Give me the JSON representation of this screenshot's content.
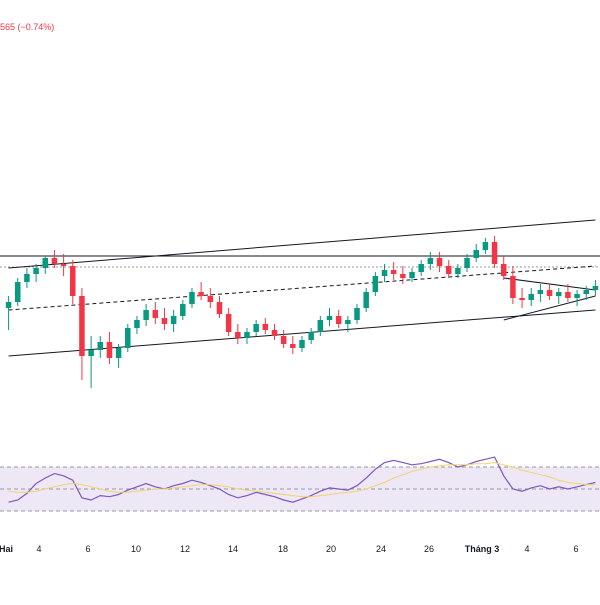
{
  "header": {
    "price_change": "565 (−0.74%)"
  },
  "colors": {
    "up": "#089981",
    "down": "#f23645",
    "rsi_line": "#7e57c2",
    "rsi_ma": "#f3d36b",
    "rsi_band": "#ede7f6",
    "trendline": "#131722",
    "horizontal_line": "#131722",
    "dotted_line": "#9598a1",
    "change_text": "#f23645"
  },
  "chart_data": [
    {
      "type": "candlestick",
      "title": "",
      "x_labels": [
        {
          "label": "Hai",
          "bold": true
        },
        {
          "label": "4",
          "bold": false
        },
        {
          "label": "6",
          "bold": false
        },
        {
          "label": "10",
          "bold": false
        },
        {
          "label": "12",
          "bold": false
        },
        {
          "label": "14",
          "bold": false
        },
        {
          "label": "18",
          "bold": false
        },
        {
          "label": "20",
          "bold": false
        },
        {
          "label": "24",
          "bold": false
        },
        {
          "label": "26",
          "bold": false
        },
        {
          "label": "Tháng 3",
          "bold": true
        },
        {
          "label": "4",
          "bold": false
        },
        {
          "label": "6",
          "bold": false
        }
      ],
      "candles": [
        [
          276,
          282,
          265,
          279
        ],
        [
          279,
          291,
          277,
          289
        ],
        [
          289,
          296,
          286,
          293
        ],
        [
          293,
          298,
          289,
          296
        ],
        [
          296,
          302,
          293,
          301
        ],
        [
          301,
          305,
          296,
          298
        ],
        [
          298,
          303,
          292,
          297
        ],
        [
          297,
          300,
          278,
          282
        ],
        [
          282,
          286,
          240,
          252
        ],
        [
          252,
          262,
          236,
          255
        ],
        [
          255,
          262,
          251,
          259
        ],
        [
          259,
          264,
          248,
          251
        ],
        [
          251,
          258,
          246,
          256
        ],
        [
          256,
          268,
          254,
          266
        ],
        [
          266,
          272,
          263,
          270
        ],
        [
          270,
          278,
          267,
          275
        ],
        [
          275,
          279,
          268,
          271
        ],
        [
          271,
          276,
          265,
          268
        ],
        [
          268,
          275,
          264,
          272
        ],
        [
          272,
          280,
          270,
          278
        ],
        [
          278,
          286,
          276,
          284
        ],
        [
          284,
          289,
          280,
          282
        ],
        [
          282,
          286,
          276,
          279
        ],
        [
          279,
          282,
          271,
          273
        ],
        [
          273,
          276,
          262,
          264
        ],
        [
          264,
          268,
          258,
          261
        ],
        [
          261,
          266,
          258,
          264
        ],
        [
          264,
          270,
          262,
          268
        ],
        [
          268,
          271,
          263,
          265
        ],
        [
          265,
          268,
          260,
          262
        ],
        [
          262,
          265,
          256,
          258
        ],
        [
          258,
          262,
          253,
          256
        ],
        [
          256,
          262,
          254,
          260
        ],
        [
          260,
          266,
          258,
          264
        ],
        [
          264,
          272,
          262,
          270
        ],
        [
          270,
          276,
          267,
          272
        ],
        [
          272,
          275,
          266,
          268
        ],
        [
          268,
          272,
          264,
          270
        ],
        [
          270,
          278,
          268,
          276
        ],
        [
          276,
          286,
          274,
          284
        ],
        [
          284,
          294,
          282,
          292
        ],
        [
          292,
          298,
          289,
          295
        ],
        [
          295,
          299,
          290,
          293
        ],
        [
          293,
          297,
          288,
          291
        ],
        [
          291,
          296,
          289,
          294
        ],
        [
          294,
          300,
          292,
          298
        ],
        [
          298,
          304,
          295,
          301
        ],
        [
          301,
          304,
          294,
          297
        ],
        [
          297,
          300,
          291,
          293
        ],
        [
          293,
          298,
          291,
          296
        ],
        [
          296,
          303,
          294,
          301
        ],
        [
          301,
          308,
          299,
          305
        ],
        [
          305,
          311,
          303,
          309
        ],
        [
          309,
          312,
          296,
          298
        ],
        [
          298,
          302,
          290,
          292
        ],
        [
          292,
          297,
          278,
          281
        ],
        [
          281,
          286,
          276,
          280
        ],
        [
          280,
          286,
          277,
          283
        ],
        [
          283,
          288,
          279,
          285
        ],
        [
          285,
          288,
          280,
          282
        ],
        [
          282,
          286,
          278,
          284
        ],
        [
          284,
          288,
          279,
          281
        ],
        [
          281,
          285,
          277,
          283
        ],
        [
          283,
          287,
          280,
          285
        ],
        [
          285,
          290,
          282,
          287
        ]
      ],
      "ylim": [
        230,
        330
      ],
      "trendlines": [
        {
          "start": {
            "x": 0,
            "y": 252
          },
          "end": {
            "x": 64,
            "y": 275
          },
          "style": "solid"
        },
        {
          "start": {
            "x": 0,
            "y": 296
          },
          "end": {
            "x": 64,
            "y": 320
          },
          "style": "solid"
        },
        {
          "start": {
            "x": 0,
            "y": 275
          },
          "end": {
            "x": 64,
            "y": 297
          },
          "style": "dashed"
        },
        {
          "start": {
            "x": 54,
            "y": 291
          },
          "end": {
            "x": 64,
            "y": 285
          },
          "style": "solid"
        },
        {
          "start": {
            "x": 54,
            "y": 270
          },
          "end": {
            "x": 64,
            "y": 282
          },
          "style": "solid"
        }
      ],
      "horizontal_lines": [
        {
          "y": 302,
          "style": "solid"
        },
        {
          "y": 296.5,
          "style": "dotted"
        }
      ]
    },
    {
      "type": "line",
      "title": "",
      "ylim": [
        20,
        80
      ],
      "bands": [
        70,
        50,
        30
      ],
      "series": [
        {
          "values": [
            38,
            40,
            46,
            55,
            60,
            64,
            62,
            58,
            42,
            40,
            44,
            43,
            45,
            49,
            52,
            55,
            52,
            50,
            53,
            55,
            58,
            56,
            53,
            50,
            45,
            42,
            44,
            47,
            45,
            43,
            40,
            38,
            41,
            44,
            48,
            51,
            50,
            49,
            53,
            60,
            68,
            74,
            76,
            74,
            72,
            73,
            75,
            77,
            74,
            70,
            72,
            75,
            77,
            79,
            62,
            50,
            48,
            51,
            53,
            50,
            52,
            50,
            52,
            54,
            56
          ]
        },
        {
          "values": [
            48,
            47,
            47,
            48,
            50,
            52,
            54,
            55,
            54,
            52,
            50,
            48,
            47,
            47,
            48,
            49,
            50,
            50,
            51,
            52,
            53,
            54,
            54,
            53,
            52,
            50,
            49,
            48,
            47,
            46,
            45,
            44,
            43,
            43,
            44,
            45,
            46,
            47,
            48,
            50,
            53,
            56,
            60,
            63,
            66,
            68,
            70,
            71,
            72,
            72,
            72,
            73,
            73,
            74,
            72,
            70,
            67,
            65,
            63,
            61,
            58,
            56,
            55,
            54,
            54
          ]
        }
      ]
    }
  ]
}
